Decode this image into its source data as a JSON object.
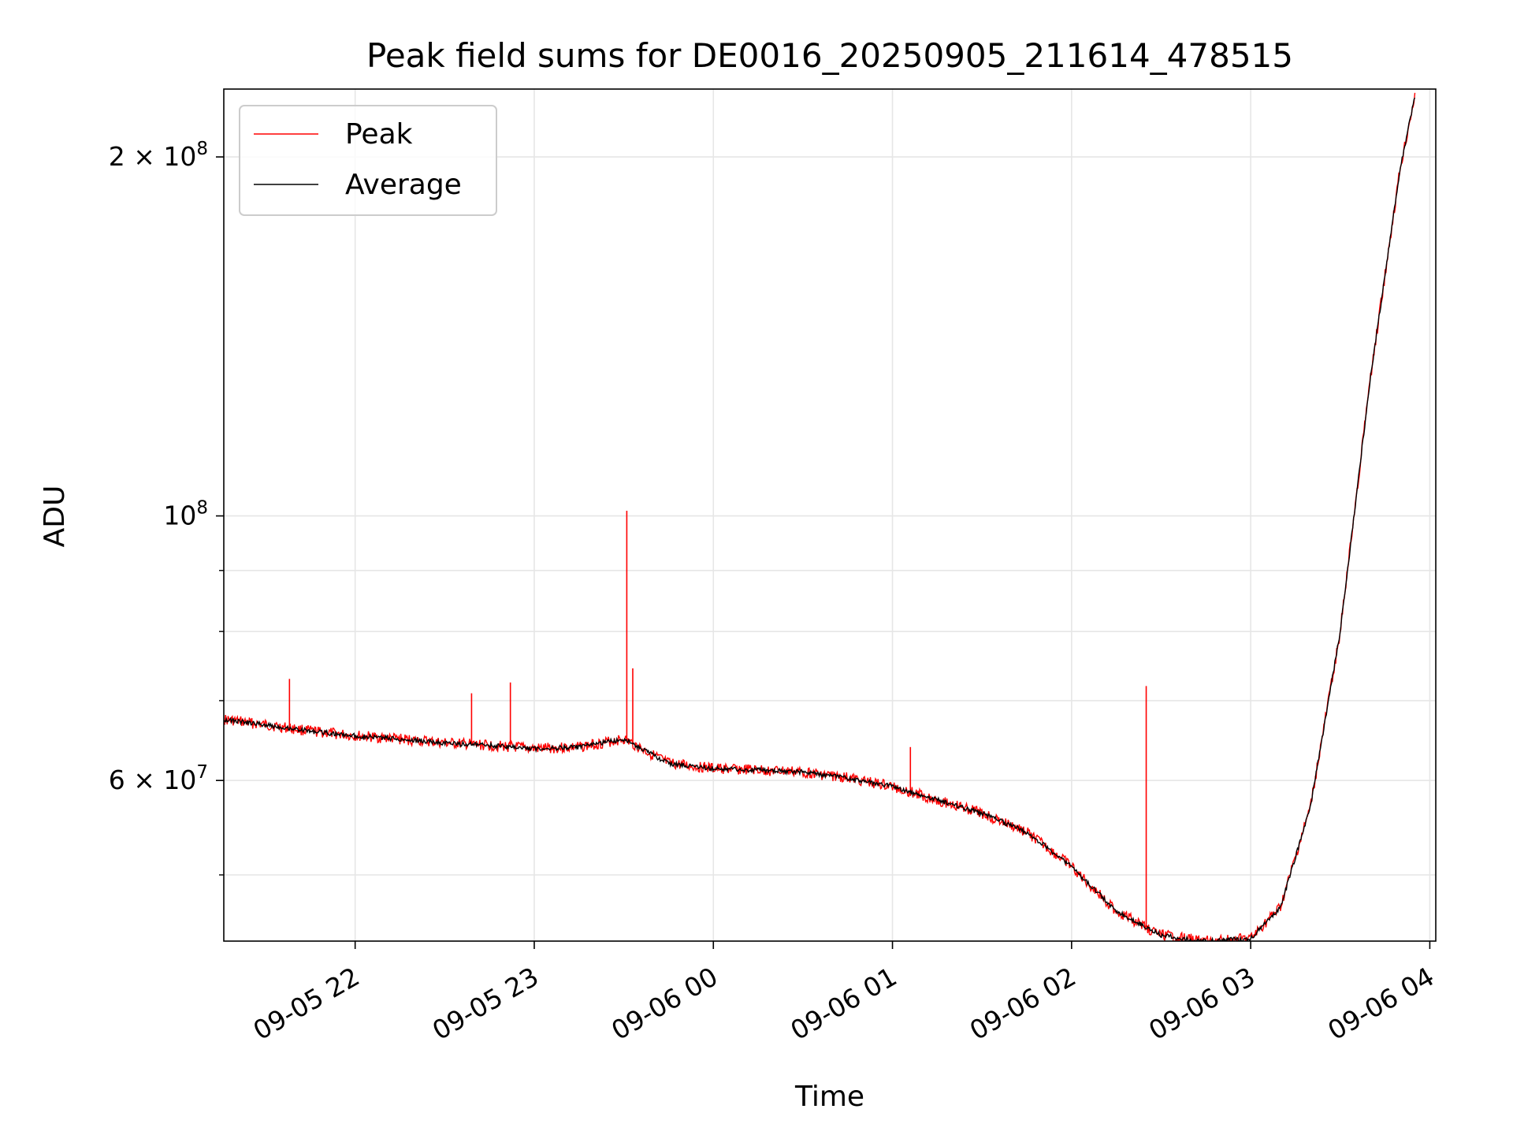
{
  "chart_data": {
    "type": "line",
    "title": "Peak field sums for DE0016_20250905_211614_478515",
    "xlabel": "Time",
    "ylabel": "ADU",
    "yscale": "log",
    "grid": true,
    "legend_placement": "top-left",
    "xlim": [
      "2025-09-05 21:16",
      "2025-09-06 04:02"
    ],
    "ylim": [
      44000000,
      228000000
    ],
    "x_ticks": [
      "2025-09-05 22:00",
      "2025-09-05 23:00",
      "2025-09-06 00:00",
      "2025-09-06 01:00",
      "2025-09-06 02:00",
      "2025-09-06 03:00",
      "2025-09-06 04:00"
    ],
    "x_tick_labels": [
      "09-05 22",
      "09-05 23",
      "09-06 00",
      "09-06 01",
      "09-06 02",
      "09-06 03",
      "09-06 04"
    ],
    "y_major_ticks": [
      {
        "value": 60000000,
        "base": "6 × 10",
        "exp": "7"
      },
      {
        "value": 100000000,
        "base": "10",
        "exp": "8"
      },
      {
        "value": 200000000,
        "base": "2 × 10",
        "exp": "8"
      }
    ],
    "y_minor_ticks": [
      50000000,
      70000000,
      80000000,
      90000000
    ],
    "series": [
      {
        "name": "Peak",
        "color": "#ff0000",
        "x": [
          "2025-09-05 21:16",
          "2025-09-05 21:30",
          "2025-09-05 21:45",
          "2025-09-05 22:00",
          "2025-09-05 22:15",
          "2025-09-05 22:30",
          "2025-09-05 22:45",
          "2025-09-05 23:00",
          "2025-09-05 23:15",
          "2025-09-05 23:30",
          "2025-09-05 23:45",
          "2025-09-06 00:00",
          "2025-09-06 00:15",
          "2025-09-06 00:30",
          "2025-09-06 00:45",
          "2025-09-06 01:00",
          "2025-09-06 01:15",
          "2025-09-06 01:30",
          "2025-09-06 01:45",
          "2025-09-06 02:00",
          "2025-09-06 02:15",
          "2025-09-06 02:30",
          "2025-09-06 02:45",
          "2025-09-06 03:00",
          "2025-09-06 03:10",
          "2025-09-06 03:20",
          "2025-09-06 03:30",
          "2025-09-06 03:40",
          "2025-09-06 03:50",
          "2025-09-06 03:55"
        ],
        "values": [
          67500000,
          66800000,
          66000000,
          65400000,
          65000000,
          64500000,
          64200000,
          63800000,
          64000000,
          65000000,
          62000000,
          61400000,
          61200000,
          61000000,
          60300000,
          59300000,
          57800000,
          56300000,
          54300000,
          50800000,
          46600000,
          44500000,
          44000000,
          44200000,
          47000000,
          57000000,
          80000000,
          130000000,
          195000000,
          225000000
        ]
      },
      {
        "name": "Average",
        "color": "#000000",
        "x": [
          "2025-09-05 21:16",
          "2025-09-05 21:30",
          "2025-09-05 21:45",
          "2025-09-05 22:00",
          "2025-09-05 22:15",
          "2025-09-05 22:30",
          "2025-09-05 22:45",
          "2025-09-05 23:00",
          "2025-09-05 23:15",
          "2025-09-05 23:30",
          "2025-09-05 23:45",
          "2025-09-06 00:00",
          "2025-09-06 00:15",
          "2025-09-06 00:30",
          "2025-09-06 00:45",
          "2025-09-06 01:00",
          "2025-09-06 01:15",
          "2025-09-06 01:30",
          "2025-09-06 01:45",
          "2025-09-06 02:00",
          "2025-09-06 02:15",
          "2025-09-06 02:30",
          "2025-09-06 02:45",
          "2025-09-06 03:00",
          "2025-09-06 03:10",
          "2025-09-06 03:20",
          "2025-09-06 03:30",
          "2025-09-06 03:40",
          "2025-09-06 03:50",
          "2025-09-06 03:55"
        ],
        "values": [
          67500000,
          66800000,
          66000000,
          65400000,
          65000000,
          64500000,
          64200000,
          63800000,
          64000000,
          65000000,
          62000000,
          61400000,
          61200000,
          61000000,
          60300000,
          59300000,
          57800000,
          56300000,
          54300000,
          50800000,
          46600000,
          44500000,
          44000000,
          44200000,
          47000000,
          57000000,
          80000000,
          130000000,
          195000000,
          225000000
        ]
      }
    ],
    "peak_spikes": [
      {
        "x": "2025-09-05 21:38",
        "value": 73000000
      },
      {
        "x": "2025-09-05 22:39",
        "value": 71000000
      },
      {
        "x": "2025-09-05 22:52",
        "value": 72500000
      },
      {
        "x": "2025-09-05 23:31",
        "value": 101000000
      },
      {
        "x": "2025-09-05 23:33",
        "value": 74500000
      },
      {
        "x": "2025-09-06 01:06",
        "value": 64000000
      },
      {
        "x": "2025-09-06 02:25",
        "value": 72000000
      }
    ]
  }
}
